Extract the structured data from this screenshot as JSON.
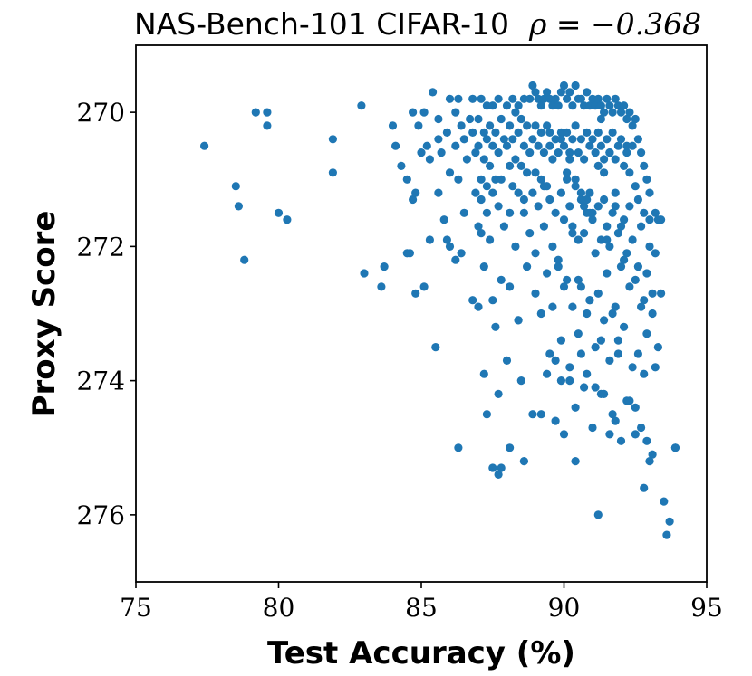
{
  "chart_data": {
    "type": "scatter",
    "title": "NAS-Bench-101 CIFAR-10",
    "title_math": "ρ = −0.368",
    "xlabel": "Test Accuracy (%)",
    "ylabel": "Proxy Score",
    "xlim": [
      75,
      95
    ],
    "ylim": [
      277,
      269
    ],
    "y_inverted": true,
    "x_ticks": [
      "75",
      "80",
      "85",
      "90",
      "95"
    ],
    "y_ticks": [
      "270",
      "272",
      "274",
      "276"
    ],
    "grid": false,
    "point_color": "#1f77b4",
    "points_x": [
      77.4,
      78.5,
      78.6,
      78.8,
      79.2,
      79.6,
      79.6,
      80.0,
      80.3,
      81.9,
      81.9,
      82.9,
      83.0,
      83.6,
      83.7,
      84.0,
      84.1,
      84.3,
      84.5,
      84.5,
      84.6,
      84.7,
      84.7,
      84.8,
      84.8,
      84.9,
      85.0,
      85.1,
      85.1,
      85.2,
      85.3,
      85.3,
      85.4,
      85.5,
      85.6,
      85.6,
      85.6,
      85.7,
      85.8,
      85.9,
      85.9,
      86.0,
      86.0,
      86.0,
      86.2,
      86.2,
      86.2,
      86.3,
      86.3,
      86.4,
      86.4,
      86.5,
      86.5,
      86.6,
      86.7,
      86.8,
      86.8,
      86.8,
      86.9,
      86.9,
      87.0,
      87.0,
      87.0,
      87.0,
      87.1,
      87.1,
      87.1,
      87.1,
      87.2,
      87.2,
      87.2,
      87.2,
      87.3,
      87.3,
      87.3,
      87.3,
      87.3,
      87.4,
      87.4,
      87.4,
      87.5,
      87.5,
      87.5,
      87.5,
      87.6,
      87.6,
      87.6,
      87.7,
      87.7,
      87.7,
      87.7,
      87.8,
      87.8,
      87.8,
      87.8,
      87.9,
      87.9,
      88.0,
      88.0,
      88.0,
      88.1,
      88.1,
      88.1,
      88.1,
      88.2,
      88.2,
      88.2,
      88.3,
      88.3,
      88.3,
      88.4,
      88.4,
      88.4,
      88.4,
      88.5,
      88.5,
      88.5,
      88.6,
      88.6,
      88.6,
      88.6,
      88.7,
      88.7,
      88.7,
      88.8,
      88.8,
      88.8,
      88.9,
      88.9,
      88.9,
      89.0,
      89.0,
      89.0,
      89.0,
      89.1,
      89.1,
      89.1,
      89.2,
      89.2,
      89.2,
      89.2,
      89.3,
      89.3,
      89.3,
      89.4,
      89.4,
      89.4,
      89.4,
      89.5,
      89.5,
      89.5,
      89.5,
      89.6,
      89.6,
      89.6,
      89.7,
      89.7,
      89.7,
      89.7,
      89.8,
      89.8,
      89.8,
      89.9,
      89.9,
      89.9,
      89.9,
      90.0,
      90.0,
      90.0,
      90.0,
      90.1,
      90.1,
      90.1,
      90.1,
      90.2,
      90.2,
      90.2,
      90.2,
      90.3,
      90.3,
      90.3,
      90.3,
      90.4,
      90.4,
      90.4,
      90.4,
      90.5,
      90.5,
      90.5,
      90.5,
      90.6,
      90.6,
      90.6,
      90.6,
      90.7,
      90.7,
      90.7,
      90.7,
      90.8,
      90.8,
      90.8,
      90.8,
      90.9,
      90.9,
      90.9,
      90.9,
      91.0,
      91.0,
      91.0,
      91.0,
      91.1,
      91.1,
      91.1,
      91.1,
      91.2,
      91.2,
      91.2,
      91.2,
      91.3,
      91.3,
      91.3,
      91.3,
      91.4,
      91.4,
      91.4,
      91.4,
      91.5,
      91.5,
      91.5,
      91.5,
      91.6,
      91.6,
      91.6,
      91.6,
      91.7,
      91.7,
      91.7,
      91.7,
      91.8,
      91.8,
      91.8,
      91.8,
      91.9,
      91.9,
      91.9,
      91.9,
      92.0,
      92.0,
      92.0,
      92.0,
      92.1,
      92.1,
      92.1,
      92.1,
      92.2,
      92.2,
      92.2,
      92.2,
      92.3,
      92.3,
      92.3,
      92.3,
      92.4,
      92.4,
      92.4,
      92.4,
      92.5,
      92.5,
      92.5,
      92.5,
      92.6,
      92.6,
      92.6,
      92.6,
      92.7,
      92.7,
      92.7,
      92.7,
      92.8,
      92.8,
      92.8,
      92.8,
      92.9,
      92.9,
      92.9,
      92.9,
      93.0,
      93.0,
      93.0,
      93.0,
      93.1,
      93.1,
      93.1,
      93.2,
      93.2,
      93.2,
      93.3,
      93.3,
      93.4,
      93.4,
      93.5,
      93.6,
      93.7,
      93.9,
      93.9,
      88.6,
      87.7,
      91.1,
      92.8,
      91.8,
      86.3,
      89.4,
      90.4,
      91.2,
      88.9,
      87.5,
      89.9,
      90.6,
      91.6,
      92.3,
      88.1,
      90.2,
      89.7,
      91.4,
      92.5,
      90.8,
      89.2,
      88.4,
      91.9,
      90.0,
      89.6,
      91.3,
      90.5,
      92.1,
      90.9,
      89.0,
      91.7,
      90.3,
      89.8,
      91.5,
      90.7,
      92.0,
      89.3,
      91.0,
      90.1,
      90.6,
      91.2,
      90.4,
      91.6,
      90.8,
      89.9,
      91.4,
      90.2,
      91.8,
      92.2,
      89.5,
      90.9,
      91.3,
      92.6,
      88.7,
      91.9
    ],
    "points_y": [
      270.5,
      271.1,
      271.4,
      272.2,
      270.0,
      270.0,
      270.2,
      271.5,
      271.6,
      270.4,
      270.9,
      269.9,
      272.4,
      272.6,
      272.3,
      270.2,
      270.5,
      270.8,
      271.0,
      272.1,
      272.1,
      270.0,
      271.3,
      271.2,
      272.7,
      270.2,
      270.6,
      272.6,
      270.0,
      270.5,
      271.9,
      270.7,
      269.7,
      273.5,
      270.1,
      270.4,
      271.2,
      270.6,
      271.6,
      271.9,
      270.3,
      269.8,
      270.9,
      272.0,
      270.0,
      270.5,
      272.2,
      269.8,
      271.0,
      270.2,
      272.1,
      270.4,
      271.5,
      270.7,
      270.1,
      269.8,
      270.3,
      272.8,
      271.2,
      270.6,
      270.1,
      270.5,
      272.9,
      271.7,
      269.8,
      271.0,
      271.3,
      271.8,
      270.3,
      270.7,
      272.3,
      273.9,
      269.9,
      270.4,
      271.1,
      271.5,
      274.5,
      270.2,
      270.8,
      271.9,
      269.9,
      270.5,
      271.2,
      272.8,
      270.3,
      271.0,
      273.2,
      269.8,
      270.6,
      271.4,
      274.2,
      270.1,
      271.0,
      272.5,
      275.3,
      270.4,
      271.7,
      269.9,
      270.5,
      273.7,
      270.2,
      270.8,
      271.5,
      272.6,
      269.8,
      270.4,
      271.1,
      270.0,
      270.7,
      272.0,
      269.9,
      270.3,
      271.2,
      273.1,
      270.1,
      270.8,
      274.0,
      269.8,
      270.5,
      271.5,
      275.2,
      270.2,
      270.9,
      272.3,
      269.8,
      270.6,
      271.8,
      269.6,
      270.4,
      271.2,
      269.7,
      270.2,
      270.9,
      272.7,
      269.8,
      270.5,
      271.4,
      269.9,
      270.3,
      271.0,
      273.0,
      269.8,
      270.6,
      271.7,
      269.7,
      270.2,
      271.1,
      272.4,
      269.8,
      270.5,
      271.3,
      273.6,
      269.9,
      270.7,
      272.0,
      269.8,
      270.4,
      271.5,
      274.6,
      269.9,
      270.6,
      272.2,
      269.7,
      270.3,
      271.2,
      273.4,
      269.6,
      270.5,
      271.6,
      274.8,
      269.8,
      270.3,
      271.0,
      272.5,
      269.7,
      270.6,
      271.4,
      273.8,
      269.9,
      270.4,
      271.7,
      272.9,
      269.6,
      270.2,
      271.1,
      274.4,
      269.8,
      270.6,
      271.9,
      273.3,
      269.8,
      270.4,
      271.3,
      272.6,
      269.9,
      270.7,
      271.8,
      274.1,
      269.7,
      270.3,
      271.5,
      273.0,
      269.9,
      270.5,
      271.2,
      272.8,
      269.8,
      270.4,
      271.6,
      274.7,
      269.9,
      270.6,
      272.1,
      273.5,
      269.8,
      270.3,
      271.4,
      272.7,
      269.9,
      270.5,
      271.9,
      274.2,
      270.0,
      270.7,
      271.3,
      273.1,
      269.8,
      270.4,
      271.7,
      272.4,
      269.9,
      270.6,
      272.0,
      273.7,
      270.0,
      270.3,
      271.5,
      274.5,
      269.8,
      270.7,
      271.2,
      272.9,
      269.9,
      270.5,
      271.8,
      273.4,
      270.0,
      270.4,
      272.3,
      274.9,
      269.9,
      270.8,
      271.6,
      273.2,
      270.1,
      270.6,
      272.1,
      274.3,
      270.0,
      270.9,
      271.4,
      272.6,
      270.2,
      270.5,
      271.9,
      273.8,
      270.1,
      271.1,
      272.5,
      274.4,
      270.4,
      271.3,
      272.3,
      273.6,
      270.6,
      271.7,
      272.9,
      274.7,
      270.8,
      271.5,
      272.8,
      273.9,
      271.0,
      272.4,
      273.3,
      274.9,
      271.2,
      272.0,
      275.2,
      271.6,
      273.0,
      272.7,
      275.1,
      271.5,
      273.8,
      272.1,
      271.6,
      273.5,
      272.7,
      271.6,
      275.8,
      276.3,
      276.1,
      275.0,
      275.0,
      271.3,
      275.4,
      274.1,
      275.6,
      274.6,
      275.0,
      273.9,
      275.2,
      276.0,
      274.5,
      275.3,
      274.0,
      273.6,
      274.8,
      274.3,
      275.0,
      274.0,
      273.7,
      274.2,
      274.8,
      273.9,
      274.5,
      273.1,
      273.6,
      272.6,
      272.9,
      273.4,
      272.5,
      272.2,
      272.8,
      272.1,
      273.0,
      271.8,
      272.3,
      271.9,
      271.4,
      271.7,
      271.1,
      271.5,
      270.9,
      271.2,
      270.8,
      271.0,
      270.6,
      271.3,
      270.4,
      270.9,
      270.7,
      271.4,
      270.5,
      270.3,
      271.5,
      270.1
    ]
  }
}
